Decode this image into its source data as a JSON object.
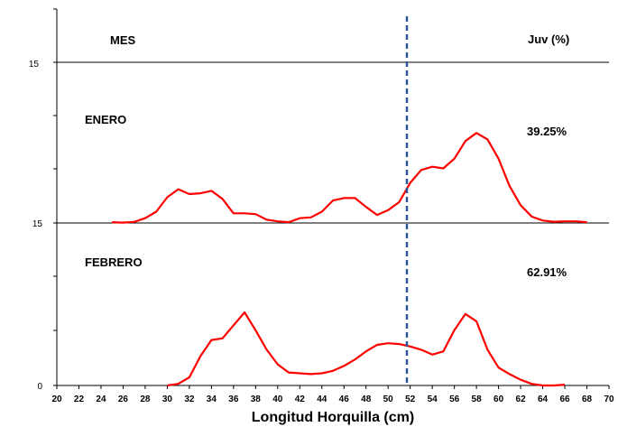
{
  "chart_data": {
    "type": "line",
    "xlabel": "Longitud Horquilla (cm)",
    "xlim": [
      20,
      70
    ],
    "x_ticks": [
      20,
      22,
      24,
      26,
      28,
      30,
      32,
      34,
      36,
      38,
      40,
      42,
      44,
      46,
      48,
      50,
      52,
      54,
      56,
      58,
      60,
      62,
      64,
      66,
      68,
      70
    ],
    "y_tick_labels": [
      "0",
      "15",
      "15"
    ],
    "header": {
      "left": "MES",
      "right": "Juv (%)"
    },
    "reference_line_x": 51.7,
    "line_color": "#ff0000",
    "reference_line_color": "#2f5597",
    "panels": [
      {
        "label": "ENERO",
        "juv_percent": "39.25%",
        "ylim": [
          0,
          100
        ],
        "x": [
          25,
          26,
          27,
          28,
          29,
          30,
          31,
          32,
          33,
          34,
          35,
          36,
          37,
          38,
          39,
          40,
          41,
          42,
          43,
          44,
          45,
          46,
          47,
          48,
          49,
          50,
          51,
          52,
          53,
          54,
          55,
          56,
          57,
          58,
          59,
          60,
          61,
          62,
          63,
          64,
          65,
          66,
          67,
          68
        ],
        "values": [
          0.5,
          0.2,
          0.7,
          3,
          7,
          16,
          21,
          18,
          18.5,
          20,
          15,
          6,
          6,
          5.5,
          2,
          1,
          0.5,
          3,
          3.5,
          7,
          14,
          15.5,
          15.5,
          10,
          5,
          8,
          13,
          25,
          33,
          35,
          34,
          40,
          51,
          56,
          52,
          40,
          23,
          11,
          4,
          1.5,
          0.8,
          1,
          1,
          0.5
        ]
      },
      {
        "label": "FEBRERO",
        "juv_percent": "62.91%",
        "ylim": [
          0,
          100
        ],
        "x": [
          30,
          31,
          32,
          33,
          34,
          35,
          36,
          37,
          38,
          39,
          40,
          41,
          42,
          43,
          44,
          45,
          46,
          47,
          48,
          49,
          50,
          51,
          52,
          53,
          54,
          55,
          56,
          57,
          58,
          59,
          60,
          61,
          62,
          63,
          64,
          65,
          66
        ],
        "values": [
          0,
          1,
          5,
          18,
          28,
          29,
          37,
          45,
          34,
          22,
          13,
          8,
          7.5,
          7,
          7.5,
          9,
          12,
          16,
          21,
          25,
          26,
          25.5,
          24,
          22,
          19,
          21,
          34,
          44,
          39.5,
          22,
          11,
          7,
          3.5,
          1,
          0,
          0,
          0.5
        ]
      }
    ]
  }
}
